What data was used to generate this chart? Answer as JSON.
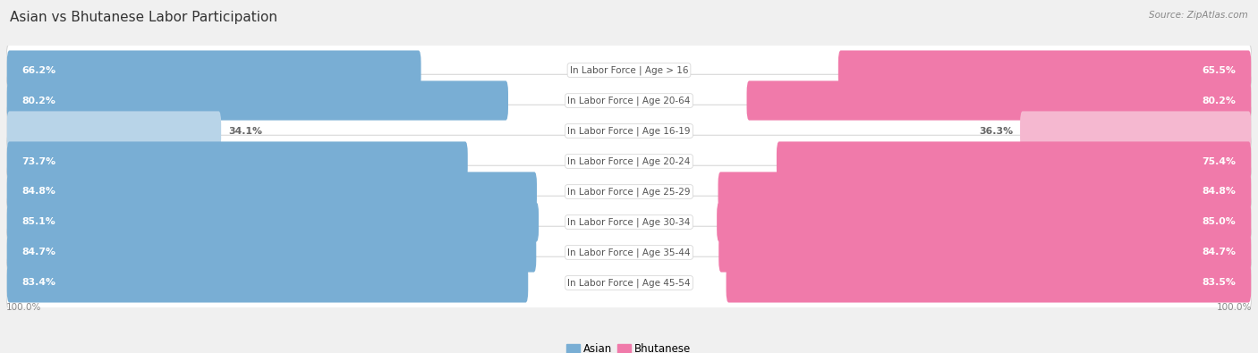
{
  "title": "Asian vs Bhutanese Labor Participation",
  "source": "Source: ZipAtlas.com",
  "categories": [
    "In Labor Force | Age > 16",
    "In Labor Force | Age 20-64",
    "In Labor Force | Age 16-19",
    "In Labor Force | Age 20-24",
    "In Labor Force | Age 25-29",
    "In Labor Force | Age 30-34",
    "In Labor Force | Age 35-44",
    "In Labor Force | Age 45-54"
  ],
  "asian_values": [
    66.2,
    80.2,
    34.1,
    73.7,
    84.8,
    85.1,
    84.7,
    83.4
  ],
  "bhutanese_values": [
    65.5,
    80.2,
    36.3,
    75.4,
    84.8,
    85.0,
    84.7,
    83.5
  ],
  "asian_color": "#79aed4",
  "bhutanese_color": "#f07aaa",
  "asian_color_light": "#b8d4e8",
  "bhutanese_color_light": "#f5b8d0",
  "bg_color": "#f0f0f0",
  "row_color": "#ffffff",
  "row_border_color": "#d8d8d8",
  "center_label_color": "#555555",
  "value_color_inside": "#ffffff",
  "value_color_outside": "#666666",
  "title_color": "#333333",
  "source_color": "#888888",
  "axis_label_color": "#888888",
  "max_value": 100.0,
  "light_threshold": 50,
  "title_fontsize": 11,
  "label_fontsize": 7.5,
  "value_fontsize": 7.8,
  "legend_fontsize": 8.5,
  "axis_label_fontsize": 7.5
}
